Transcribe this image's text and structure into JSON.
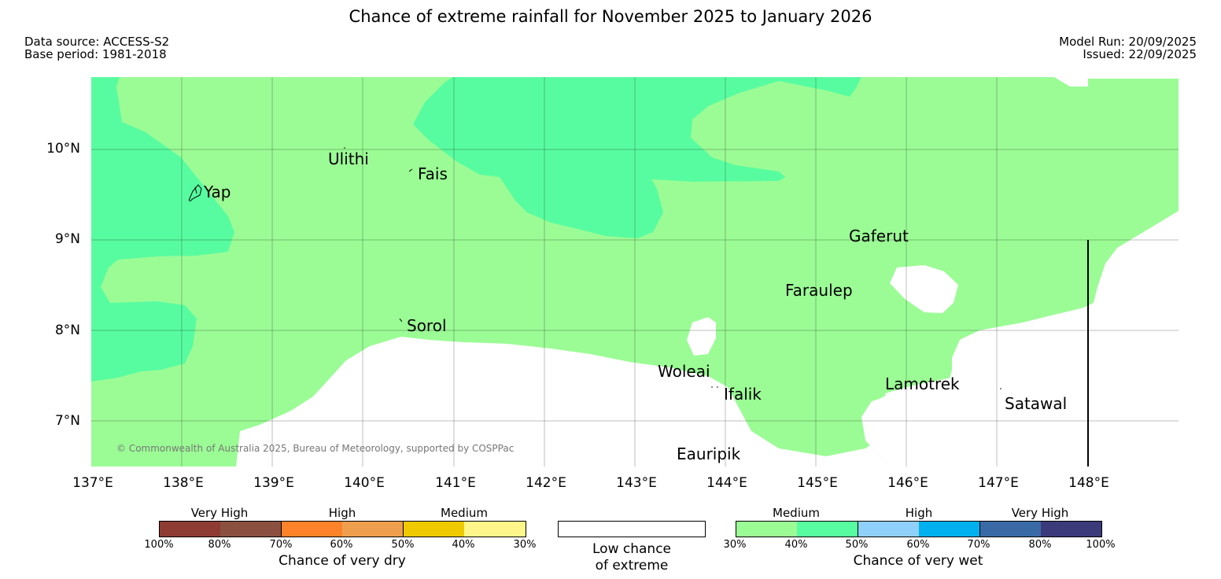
{
  "title": "Chance of extreme rainfall for November 2025 to January 2026",
  "meta": {
    "data_source": "Data source: ACCESS-S2",
    "base_period": "Base period: 1981-2018",
    "model_run": "Model Run: 20/09/2025",
    "issued": "Issued: 22/09/2025"
  },
  "map": {
    "lat_labels": [
      "10°N",
      "9°N",
      "8°N",
      "7°N"
    ],
    "lon_labels": [
      "137°E",
      "138°E",
      "139°E",
      "140°E",
      "141°E",
      "142°E",
      "143°E",
      "144°E",
      "145°E",
      "146°E",
      "147°E",
      "148°E"
    ],
    "places": [
      "Yap",
      "Ulithi",
      "Fais",
      "Sorol",
      "Gaferut",
      "Faraulep",
      "Woleai",
      "Ifalik",
      "Lamotrek",
      "Satawal",
      "Eauripik"
    ],
    "copyright": "© Commonwealth of Australia 2025, Bureau of Meteorology, supported by COSPPac",
    "colors": {
      "medium_wet": "#9bfc95",
      "medium_wet_40_50": "#58fca0",
      "low_chance": "#ffffff"
    }
  },
  "legend": {
    "dry": {
      "bands": [
        "Very High",
        "High",
        "Medium"
      ],
      "ticks": [
        "100%",
        "80%",
        "70%",
        "60%",
        "50%",
        "40%",
        "30%"
      ],
      "colors": [
        "#8e3b34",
        "#8b5040",
        "#fd832a",
        "#ef9e4e",
        "#efca00",
        "#fef68a"
      ],
      "caption": "Chance of very dry"
    },
    "low": {
      "caption_line1": "Low chance",
      "caption_line2": "of extreme"
    },
    "wet": {
      "bands": [
        "Medium",
        "High",
        "Very High"
      ],
      "ticks": [
        "30%",
        "40%",
        "50%",
        "60%",
        "70%",
        "80%",
        "100%"
      ],
      "colors": [
        "#9bfc95",
        "#58fca0",
        "#8fd0fb",
        "#00b0ef",
        "#3a6aa6",
        "#3b3b7b"
      ],
      "caption": "Chance of very wet"
    }
  }
}
